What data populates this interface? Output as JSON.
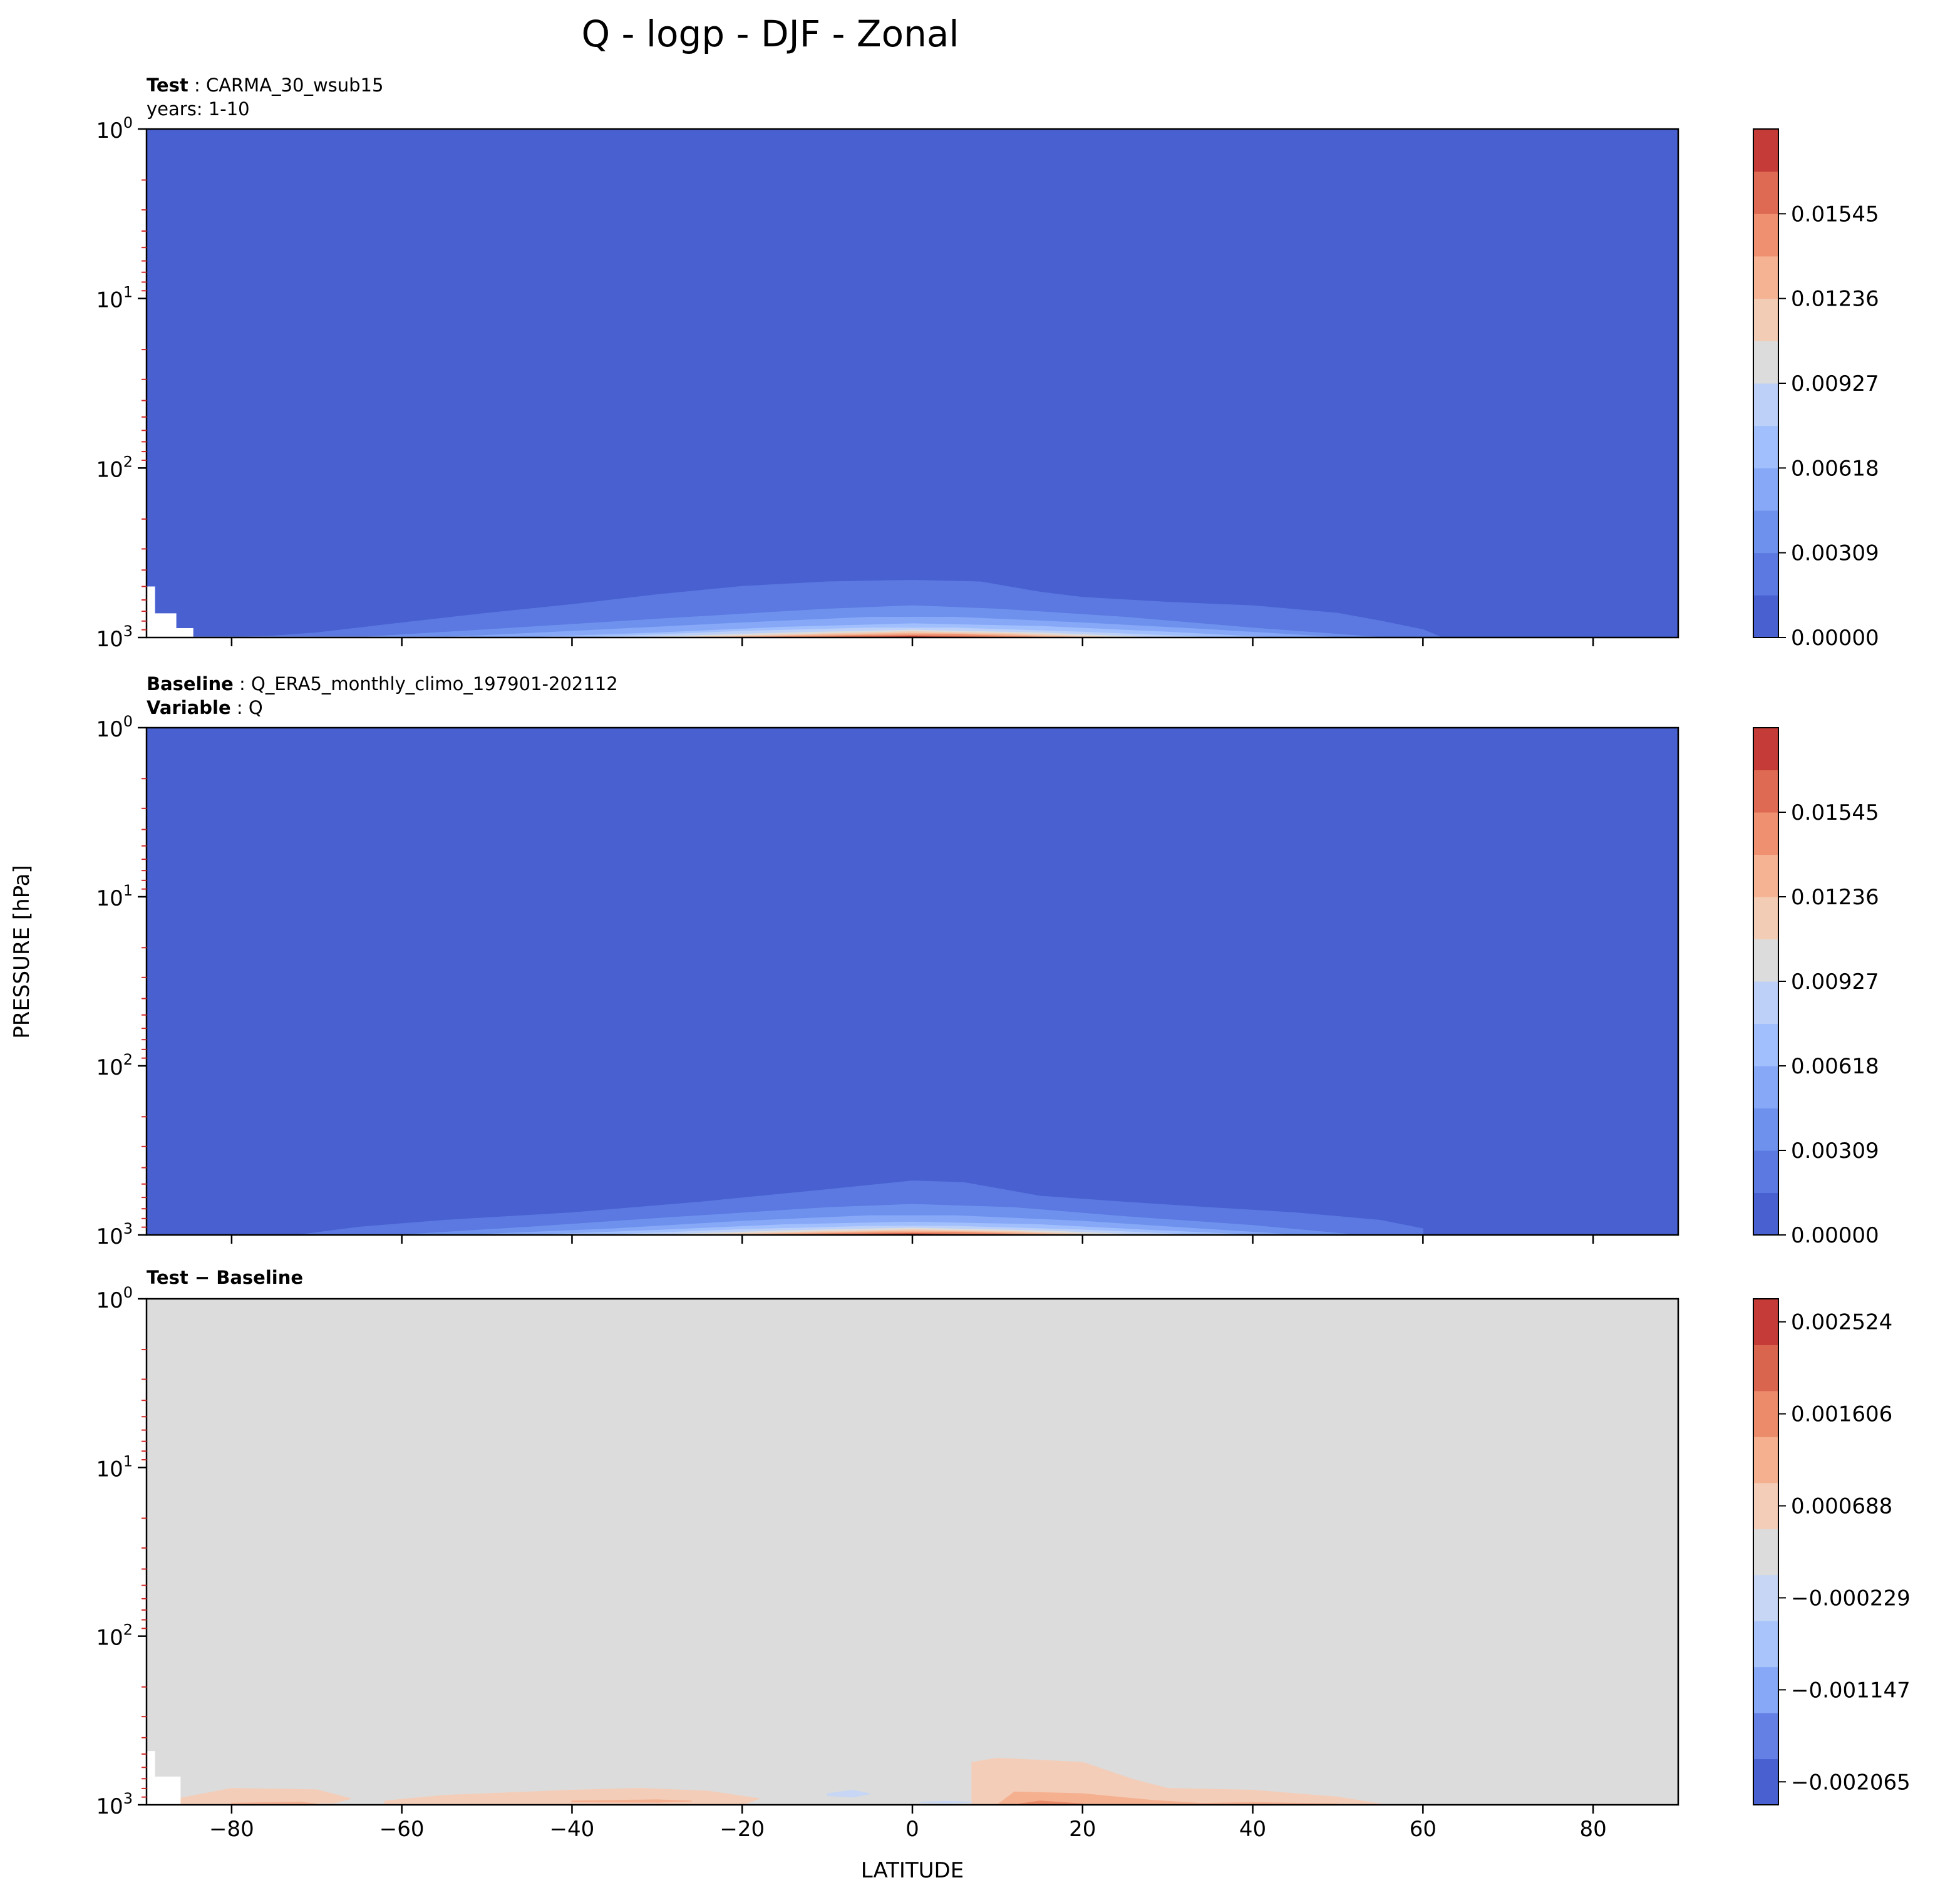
{
  "figure": {
    "title": "Q - logp - DJF - Zonal",
    "ylabel": "PRESSURE [hPa]",
    "xlabel": "LATITUDE"
  },
  "chart_data": [
    {
      "type": "heatmap",
      "subtitle": {
        "line1_bold": "Test",
        "line1_text": "CARMA_30_wsub15",
        "line2_text": "years: 1-10"
      },
      "x_range": [
        -90,
        90
      ],
      "y_range": [
        1,
        1000
      ],
      "y_scale": "log",
      "x_ticks": [
        -80,
        -60,
        -40,
        -20,
        0,
        20,
        40,
        60,
        80
      ],
      "y_ticks": [
        {
          "value": 1,
          "base": "10",
          "exp": "0"
        },
        {
          "value": 10,
          "base": "10",
          "exp": "1"
        },
        {
          "value": 100,
          "base": "10",
          "exp": "2"
        },
        {
          "value": 1000,
          "base": "10",
          "exp": "3"
        }
      ],
      "colorbar": {
        "levels": 12,
        "tick_labels": [
          "0.00000",
          "0.00309",
          "0.00618",
          "0.00927",
          "0.01236",
          "0.01545"
        ],
        "tick_level_index": [
          0,
          2,
          4,
          6,
          8,
          10
        ]
      },
      "background_level": 0,
      "contours": [
        {
          "level": 1,
          "lat": [
            -80,
            -75,
            -70,
            -60,
            -50,
            -40,
            -30,
            -20,
            -10,
            0,
            8,
            15,
            20,
            30,
            40,
            50,
            55,
            60,
            62
          ],
          "p": [
            1000,
            980,
            940,
            820,
            720,
            640,
            560,
            500,
            470,
            460,
            470,
            540,
            580,
            620,
            650,
            720,
            800,
            900,
            990
          ]
        },
        {
          "level": 2,
          "lat": [
            -65,
            -50,
            -30,
            -10,
            0,
            10,
            25,
            40,
            55
          ],
          "p": [
            1000,
            900,
            780,
            680,
            650,
            680,
            760,
            880,
            1000
          ]
        },
        {
          "level": 3,
          "lat": [
            -55,
            -40,
            -20,
            -5,
            5,
            20,
            35,
            50
          ],
          "p": [
            1000,
            920,
            820,
            760,
            760,
            820,
            900,
            1000
          ]
        },
        {
          "level": 4,
          "lat": [
            -45,
            -30,
            -15,
            0,
            15,
            30,
            42
          ],
          "p": [
            1000,
            940,
            870,
            830,
            860,
            930,
            1000
          ]
        },
        {
          "level": 5,
          "lat": [
            -38,
            -20,
            -5,
            5,
            20,
            35
          ],
          "p": [
            1000,
            920,
            880,
            880,
            930,
            1000
          ]
        },
        {
          "level": 6,
          "lat": [
            -32,
            -15,
            0,
            15,
            28
          ],
          "p": [
            1000,
            940,
            905,
            940,
            1000
          ]
        },
        {
          "level": 7,
          "lat": [
            -28,
            -10,
            0,
            12,
            24
          ],
          "p": [
            1000,
            950,
            925,
            950,
            1000
          ]
        },
        {
          "level": 8,
          "lat": [
            -24,
            -8,
            0,
            10,
            20
          ],
          "p": [
            1000,
            960,
            945,
            960,
            1000
          ]
        },
        {
          "level": 9,
          "lat": [
            -20,
            -5,
            5,
            16
          ],
          "p": [
            1000,
            970,
            962,
            1000
          ]
        },
        {
          "level": 10,
          "lat": [
            -14,
            0,
            12
          ],
          "p": [
            1000,
            978,
            1000
          ]
        },
        {
          "level": 11,
          "lat": [
            -8,
            0,
            6
          ],
          "p": [
            1000,
            990,
            1000
          ]
        }
      ],
      "missing_region": {
        "lat": [
          -90,
          -89,
          -89,
          -86.5,
          -86.5,
          -84.5,
          -84.5,
          -52,
          -52,
          -90
        ],
        "p": [
          500,
          500,
          720,
          720,
          880,
          880,
          990,
          990,
          1000,
          1000
        ]
      }
    },
    {
      "type": "heatmap",
      "subtitle": {
        "line1_bold": "Baseline",
        "line1_text": "Q_ERA5_monthly_climo_197901-202112",
        "line2_bold": "Variable",
        "line2_text": "Q"
      },
      "x_range": [
        -90,
        90
      ],
      "y_range": [
        1,
        1000
      ],
      "y_scale": "log",
      "x_ticks": [
        -80,
        -60,
        -40,
        -20,
        0,
        20,
        40,
        60,
        80
      ],
      "y_ticks": [
        {
          "value": 1,
          "base": "10",
          "exp": "0"
        },
        {
          "value": 10,
          "base": "10",
          "exp": "1"
        },
        {
          "value": 100,
          "base": "10",
          "exp": "2"
        },
        {
          "value": 1000,
          "base": "10",
          "exp": "3"
        }
      ],
      "colorbar": {
        "levels": 12,
        "tick_labels": [
          "0.00000",
          "0.00309",
          "0.00618",
          "0.00927",
          "0.01236",
          "0.01545"
        ],
        "tick_level_index": [
          0,
          2,
          4,
          6,
          8,
          10
        ]
      },
      "background_level": 0,
      "contours": [
        {
          "level": 1,
          "lat": [
            -72,
            -65,
            -55,
            -40,
            -25,
            -10,
            0,
            6,
            15,
            25,
            35,
            45,
            55,
            60,
            60
          ],
          "p": [
            1000,
            900,
            820,
            740,
            640,
            540,
            480,
            490,
            590,
            640,
            690,
            740,
            820,
            920,
            1000
          ]
        },
        {
          "level": 2,
          "lat": [
            -60,
            -45,
            -30,
            -10,
            0,
            12,
            25,
            40,
            52
          ],
          "p": [
            1000,
            900,
            800,
            690,
            660,
            690,
            780,
            880,
            1000
          ]
        },
        {
          "level": 3,
          "lat": [
            -52,
            -35,
            -20,
            -5,
            5,
            20,
            32,
            45
          ],
          "p": [
            1000,
            920,
            830,
            770,
            770,
            830,
            910,
            1000
          ]
        },
        {
          "level": 4,
          "lat": [
            -44,
            -30,
            -15,
            0,
            15,
            28,
            40
          ],
          "p": [
            1000,
            940,
            870,
            840,
            870,
            940,
            1000
          ]
        },
        {
          "level": 5,
          "lat": [
            -36,
            -20,
            -5,
            5,
            20,
            33
          ],
          "p": [
            1000,
            930,
            890,
            890,
            935,
            1000
          ]
        },
        {
          "level": 6,
          "lat": [
            -30,
            -15,
            0,
            15,
            27
          ],
          "p": [
            1000,
            945,
            912,
            945,
            1000
          ]
        },
        {
          "level": 7,
          "lat": [
            -26,
            -10,
            0,
            12,
            22
          ],
          "p": [
            1000,
            955,
            932,
            955,
            1000
          ]
        },
        {
          "level": 8,
          "lat": [
            -22,
            -8,
            0,
            10,
            19
          ],
          "p": [
            1000,
            965,
            950,
            965,
            1000
          ]
        },
        {
          "level": 9,
          "lat": [
            -18,
            -5,
            5,
            15
          ],
          "p": [
            1000,
            972,
            965,
            1000
          ]
        },
        {
          "level": 10,
          "lat": [
            -13,
            0,
            11
          ],
          "p": [
            1000,
            980,
            1000
          ]
        },
        {
          "level": 11,
          "lat": [
            -7,
            0,
            6
          ],
          "p": [
            1000,
            991,
            1000
          ]
        }
      ]
    },
    {
      "type": "heatmap",
      "subtitle": {
        "line1_bold": "Test − Baseline"
      },
      "x_range": [
        -90,
        90
      ],
      "y_range": [
        1,
        1000
      ],
      "y_scale": "log",
      "x_ticks": [
        -80,
        -60,
        -40,
        -20,
        0,
        20,
        40,
        60,
        80
      ],
      "x_tick_labels": [
        "−80",
        "−60",
        "−40",
        "−20",
        "0",
        "20",
        "40",
        "60",
        "80"
      ],
      "y_ticks": [
        {
          "value": 1,
          "base": "10",
          "exp": "0"
        },
        {
          "value": 10,
          "base": "10",
          "exp": "1"
        },
        {
          "value": 100,
          "base": "10",
          "exp": "2"
        },
        {
          "value": 1000,
          "base": "10",
          "exp": "3"
        }
      ],
      "colorbar": {
        "levels": 11,
        "tick_labels": [
          "−0.002065",
          "−0.001147",
          "−0.000229",
          "0.000688",
          "0.001606",
          "0.002524"
        ],
        "tick_level_index": [
          0.5,
          2.5,
          4.5,
          6.5,
          8.5,
          10.5
        ]
      },
      "background_level": 5,
      "contours": [
        {
          "level": 6,
          "lat": [
            -90,
            -80,
            -70,
            -66,
            -68,
            -78,
            -90
          ],
          "p": [
            1000,
            800,
            815,
            920,
            975,
            990,
            1000
          ]
        },
        {
          "level": 6,
          "lat": [
            -62,
            -55,
            -40,
            -32,
            -24,
            -18,
            -20,
            -35,
            -55,
            -62
          ],
          "p": [
            950,
            880,
            820,
            800,
            830,
            920,
            1000,
            1000,
            1000,
            990
          ]
        },
        {
          "level": 6,
          "lat": [
            7,
            7,
            10,
            20,
            26,
            30,
            40,
            50,
            55,
            52,
            30,
            7
          ],
          "p": [
            880,
            560,
            530,
            560,
            710,
            800,
            820,
            900,
            990,
            1000,
            1000,
            1000
          ]
        },
        {
          "level": 7,
          "lat": [
            -40,
            -30,
            -26,
            -30,
            -40
          ],
          "p": [
            950,
            935,
            950,
            965,
            960
          ]
        },
        {
          "level": 7,
          "lat": [
            10,
            12,
            20,
            28,
            35,
            30,
            18,
            10
          ],
          "p": [
            1000,
            840,
            860,
            940,
            990,
            1000,
            1000,
            1000
          ]
        },
        {
          "level": 7,
          "lat": [
            30,
            40,
            50,
            45,
            32
          ],
          "p": [
            990,
            970,
            990,
            1000,
            1000
          ]
        },
        {
          "level": 7,
          "lat": [
            -80,
            -72,
            -70,
            -80
          ],
          "p": [
            980,
            965,
            990,
            995
          ]
        },
        {
          "level": 8,
          "lat": [
            12,
            15,
            20,
            17,
            12
          ],
          "p": [
            1000,
            950,
            990,
            1000,
            1000
          ]
        },
        {
          "level": 4,
          "lat": [
            -10,
            -7,
            -5,
            -7,
            -10
          ],
          "p": [
            860,
            820,
            860,
            900,
            880
          ]
        },
        {
          "level": 4,
          "lat": [
            1,
            4,
            7,
            4,
            1
          ],
          "p": [
            965,
            955,
            965,
            975,
            970
          ]
        }
      ],
      "missing_region": {
        "lat": [
          -90,
          -89,
          -89,
          -86,
          -86,
          -52,
          -52,
          -90
        ],
        "p": [
          480,
          480,
          680,
          680,
          990,
          990,
          1000,
          1000
        ]
      }
    }
  ],
  "palettes": {
    "abs": [
      "#4860d0",
      "#5b79e0",
      "#6e91ee",
      "#86a8f7",
      "#a0bffc",
      "#bcd0f8",
      "#dcdcdc",
      "#f2ccb5",
      "#f6b394",
      "#ef9070",
      "#de6a53",
      "#c43b37"
    ],
    "diff": [
      "#4860d0",
      "#6480e5",
      "#86a8f7",
      "#a8c4fb",
      "#c6d6f4",
      "#dcdcdc",
      "#f4cdb8",
      "#f5b090",
      "#ec8b6a",
      "#d9654f",
      "#c43b37"
    ],
    "missing": "#ffffff",
    "minor_tick": "#d62728"
  }
}
